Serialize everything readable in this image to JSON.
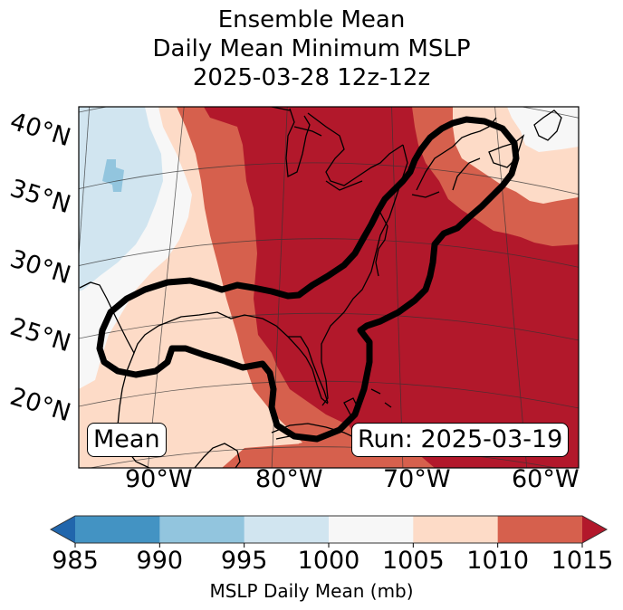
{
  "title": {
    "line1": "Ensemble Mean",
    "line2": "Daily Mean Minimum MSLP",
    "line3": "2025-03-28 12z-12z"
  },
  "map": {
    "projection": "lambert-conformal",
    "extent": {
      "lon_min": -97,
      "lon_max": -58,
      "lat_min": 15,
      "lat_max": 42
    },
    "lat_labels": [
      "40°N",
      "35°N",
      "30°N",
      "25°N",
      "20°N"
    ],
    "lon_labels": [
      "90°W",
      "80°W",
      "70°W",
      "60°W"
    ],
    "annotation_left": "Mean",
    "annotation_right": "Run: 2025-03-19",
    "contour_color": "#000000",
    "field": "MSLP daily mean minimum, shaded by 5 mb bins",
    "regions_summary": [
      {
        "area": "far west (Great Plains)",
        "bin": "995-1000",
        "note": "small 990-995 pocket near 36°N 96°W"
      },
      {
        "area": "central plains / west Texas",
        "bin": "1000-1005"
      },
      {
        "area": "Mississippi valley / west Gulf",
        "bin": "1005-1010"
      },
      {
        "area": "central Gulf / Ohio valley / Canadian Maritimes south",
        "bin": "1010-1015"
      },
      {
        "area": "eastern US / Florida / western Atlantic",
        "bin": ">1015"
      },
      {
        "area": "Nova Scotia / Newfoundland north",
        "bin": "1000-1005 to 1005-1010"
      }
    ]
  },
  "colorbar": {
    "label": "MSLP Daily Mean (mb)",
    "ticks": [
      "985",
      "990",
      "995",
      "1000",
      "1005",
      "1010",
      "1015"
    ],
    "bins": [
      {
        "range": "<985",
        "color": "#2166ac"
      },
      {
        "range": "985-990",
        "color": "#4393c3"
      },
      {
        "range": "990-995",
        "color": "#92c5de"
      },
      {
        "range": "995-1000",
        "color": "#d1e5f0"
      },
      {
        "range": "1000-1005",
        "color": "#f7f7f7"
      },
      {
        "range": "1005-1010",
        "color": "#fddbc7"
      },
      {
        "range": "1010-1015",
        "color": "#d6604d"
      },
      {
        "range": ">1015",
        "color": "#b2182b"
      }
    ]
  }
}
